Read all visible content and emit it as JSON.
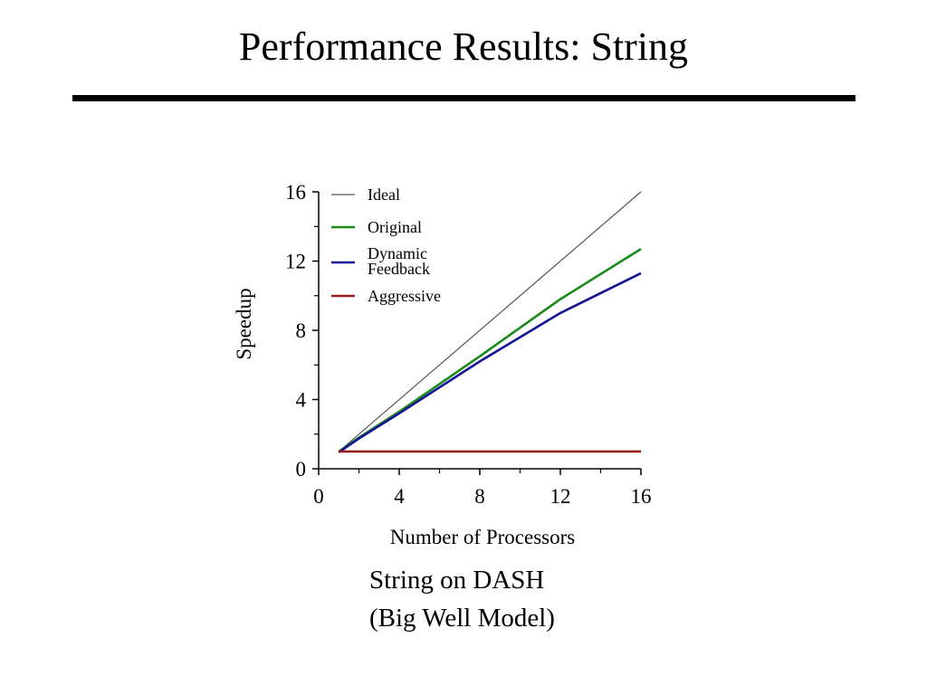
{
  "slide": {
    "title": "Performance Results: String",
    "caption_lines": [
      "String on DASH",
      "(Big Well Model)"
    ]
  },
  "chart_data": {
    "type": "line",
    "xlabel": "Number of Processors",
    "ylabel": "Speedup",
    "xlim": [
      0,
      16
    ],
    "ylim": [
      0,
      16
    ],
    "x_ticks": [
      0,
      4,
      8,
      12,
      16
    ],
    "y_ticks": [
      0,
      4,
      8,
      12,
      16
    ],
    "x_minor_ticks": [
      2,
      6,
      10,
      14
    ],
    "y_minor_ticks": [
      2,
      6,
      10,
      14
    ],
    "grid": false,
    "legend_position": "top-left",
    "series": [
      {
        "name": "Ideal",
        "legend_lines": [
          "Ideal"
        ],
        "color": "#555555",
        "x": [
          1,
          16
        ],
        "y": [
          1,
          16
        ]
      },
      {
        "name": "Original",
        "legend_lines": [
          "Original"
        ],
        "color": "#1a8a1a",
        "x": [
          1,
          2,
          4,
          8,
          12,
          16
        ],
        "y": [
          1.0,
          1.8,
          3.3,
          6.5,
          9.8,
          12.7
        ]
      },
      {
        "name": "Dynamic Feedback",
        "legend_lines": [
          "Dynamic",
          "Feedback"
        ],
        "color": "#141496",
        "x": [
          1,
          2,
          4,
          8,
          12,
          16
        ],
        "y": [
          0.95,
          1.75,
          3.2,
          6.2,
          9.0,
          11.3
        ]
      },
      {
        "name": "Aggressive",
        "legend_lines": [
          "Aggressive"
        ],
        "color": "#9b1b1b",
        "x": [
          1,
          16
        ],
        "y": [
          1.0,
          1.0
        ]
      }
    ]
  }
}
